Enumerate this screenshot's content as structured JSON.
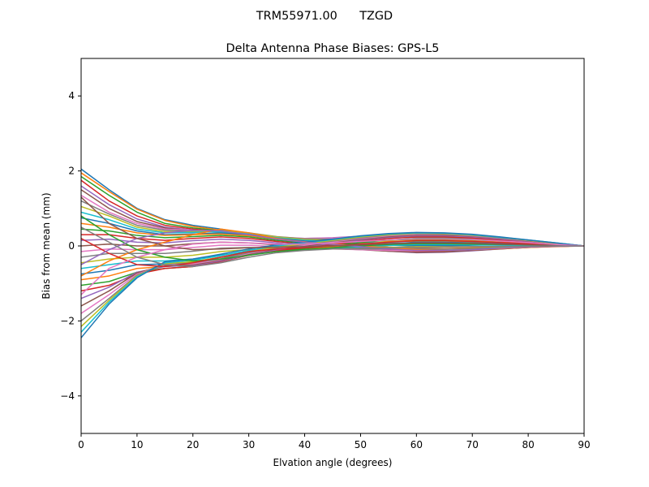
{
  "figure": {
    "suptitle": "TRM55971.00      TZGD"
  },
  "chart_data": {
    "type": "line",
    "title": "Delta Antenna Phase Biases: GPS-L5",
    "xlabel": "Elvation angle (degrees)",
    "ylabel": "Bias from mean (mm)",
    "xlim": [
      0,
      90
    ],
    "ylim": [
      -5,
      5
    ],
    "grid": false,
    "legend": "none",
    "x": [
      0,
      5,
      10,
      15,
      20,
      25,
      30,
      35,
      40,
      45,
      50,
      55,
      60,
      65,
      70,
      75,
      80,
      85,
      90
    ],
    "xticks": [
      0,
      10,
      20,
      30,
      40,
      50,
      60,
      70,
      80,
      90
    ],
    "xtick_labels": [
      "0",
      "10",
      "20",
      "30",
      "40",
      "50",
      "60",
      "70",
      "80",
      "90"
    ],
    "yticks": [
      -4,
      -2,
      0,
      2,
      4
    ],
    "ytick_labels": [
      "−4",
      "−2",
      "0",
      "2",
      "4"
    ],
    "colors": [
      "#1f77b4",
      "#ff7f0e",
      "#2ca02c",
      "#d62728",
      "#9467bd",
      "#8c564b",
      "#e377c2",
      "#7f7f7f",
      "#bcbd22",
      "#17becf"
    ],
    "series": [
      {
        "values": [
          2.05,
          1.5,
          1.0,
          0.7,
          0.55,
          0.45,
          0.32,
          0.2,
          0.12,
          0.08,
          0.05,
          0.03,
          0.02,
          0.02,
          0.03,
          0.04,
          0.04,
          0.02,
          0.0
        ]
      },
      {
        "values": [
          1.95,
          1.45,
          0.98,
          0.68,
          0.52,
          0.42,
          0.3,
          0.19,
          0.12,
          0.1,
          0.08,
          0.07,
          0.06,
          0.06,
          0.06,
          0.06,
          0.05,
          0.03,
          0.0
        ]
      },
      {
        "values": [
          1.85,
          1.35,
          0.9,
          0.6,
          0.48,
          0.4,
          0.3,
          0.2,
          0.15,
          0.15,
          0.15,
          0.16,
          0.17,
          0.17,
          0.15,
          0.13,
          0.1,
          0.05,
          0.0
        ]
      },
      {
        "values": [
          1.75,
          1.2,
          0.8,
          0.55,
          0.45,
          0.38,
          0.29,
          0.2,
          0.17,
          0.19,
          0.22,
          0.25,
          0.27,
          0.26,
          0.22,
          0.17,
          0.12,
          0.06,
          0.0
        ]
      },
      {
        "values": [
          1.6,
          1.1,
          0.72,
          0.5,
          0.42,
          0.38,
          0.3,
          0.22,
          0.2,
          0.22,
          0.26,
          0.3,
          0.32,
          0.3,
          0.26,
          0.2,
          0.14,
          0.07,
          0.0
        ]
      },
      {
        "values": [
          1.5,
          1.0,
          0.65,
          0.48,
          0.4,
          0.36,
          0.3,
          0.22,
          0.19,
          0.2,
          0.24,
          0.28,
          0.3,
          0.28,
          0.24,
          0.19,
          0.13,
          0.06,
          0.0
        ]
      },
      {
        "values": [
          1.35,
          0.9,
          0.6,
          0.45,
          0.42,
          0.4,
          0.33,
          0.24,
          0.2,
          0.21,
          0.25,
          0.29,
          0.31,
          0.29,
          0.25,
          0.2,
          0.14,
          0.07,
          0.0
        ]
      },
      {
        "values": [
          1.2,
          0.85,
          0.55,
          0.42,
          0.4,
          0.42,
          0.35,
          0.25,
          0.19,
          0.18,
          0.2,
          0.22,
          0.23,
          0.22,
          0.19,
          0.15,
          0.11,
          0.05,
          0.0
        ]
      },
      {
        "values": [
          1.05,
          0.8,
          0.5,
          0.38,
          0.38,
          0.4,
          0.34,
          0.24,
          0.17,
          0.15,
          0.14,
          0.13,
          0.12,
          0.11,
          0.1,
          0.09,
          0.07,
          0.04,
          0.0
        ]
      },
      {
        "values": [
          0.9,
          0.7,
          0.45,
          0.35,
          0.36,
          0.38,
          0.32,
          0.22,
          0.15,
          0.12,
          0.1,
          0.08,
          0.07,
          0.06,
          0.06,
          0.06,
          0.05,
          0.03,
          0.0
        ]
      },
      {
        "values": [
          0.75,
          0.6,
          0.4,
          0.3,
          0.32,
          0.34,
          0.3,
          0.2,
          0.13,
          0.09,
          0.05,
          0.02,
          0.0,
          0.0,
          0.02,
          0.03,
          0.03,
          0.02,
          0.0
        ]
      },
      {
        "values": [
          0.6,
          0.5,
          0.35,
          0.28,
          0.3,
          0.32,
          0.27,
          0.18,
          0.11,
          0.06,
          0.02,
          -0.03,
          -0.06,
          -0.07,
          -0.05,
          -0.02,
          0.0,
          0.01,
          0.0
        ]
      },
      {
        "values": [
          0.45,
          0.4,
          0.28,
          0.22,
          0.25,
          0.28,
          0.24,
          0.15,
          0.08,
          0.02,
          -0.03,
          -0.08,
          -0.12,
          -0.12,
          -0.09,
          -0.05,
          -0.02,
          0.0,
          0.0
        ]
      },
      {
        "values": [
          0.3,
          0.3,
          0.2,
          0.15,
          0.2,
          0.24,
          0.2,
          0.12,
          0.05,
          -0.01,
          -0.06,
          -0.11,
          -0.15,
          -0.15,
          -0.11,
          -0.06,
          -0.03,
          -0.01,
          0.0
        ]
      },
      {
        "values": [
          0.15,
          0.18,
          0.1,
          0.08,
          0.14,
          0.18,
          0.15,
          0.08,
          0.02,
          -0.04,
          -0.09,
          -0.14,
          -0.18,
          -0.17,
          -0.13,
          -0.08,
          -0.04,
          -0.01,
          0.0
        ]
      },
      {
        "values": [
          0.0,
          0.05,
          0.0,
          0.0,
          0.06,
          0.1,
          0.08,
          0.03,
          -0.03,
          -0.07,
          -0.1,
          -0.14,
          -0.17,
          -0.16,
          -0.12,
          -0.08,
          -0.04,
          -0.01,
          0.0
        ]
      },
      {
        "values": [
          -0.15,
          -0.08,
          -0.1,
          -0.1,
          -0.04,
          0.02,
          0.02,
          -0.02,
          -0.06,
          -0.08,
          -0.1,
          -0.12,
          -0.13,
          -0.12,
          -0.1,
          -0.07,
          -0.03,
          -0.01,
          0.0
        ]
      },
      {
        "values": [
          -0.3,
          -0.2,
          -0.2,
          -0.2,
          -0.14,
          -0.06,
          -0.04,
          -0.06,
          -0.08,
          -0.08,
          -0.08,
          -0.08,
          -0.08,
          -0.08,
          -0.07,
          -0.05,
          -0.03,
          -0.01,
          0.0
        ]
      },
      {
        "values": [
          -0.45,
          -0.35,
          -0.3,
          -0.3,
          -0.25,
          -0.15,
          -0.1,
          -0.1,
          -0.1,
          -0.08,
          -0.06,
          -0.04,
          -0.02,
          -0.02,
          -0.02,
          -0.02,
          -0.01,
          0.0,
          0.0
        ]
      },
      {
        "values": [
          -0.6,
          -0.5,
          -0.4,
          -0.4,
          -0.35,
          -0.24,
          -0.16,
          -0.13,
          -0.11,
          -0.07,
          -0.03,
          0.01,
          0.04,
          0.04,
          0.03,
          0.02,
          0.01,
          0.0,
          0.0
        ]
      },
      {
        "values": [
          -0.75,
          -0.65,
          -0.5,
          -0.48,
          -0.43,
          -0.3,
          -0.2,
          -0.15,
          -0.11,
          -0.05,
          0.01,
          0.06,
          0.1,
          0.1,
          0.08,
          0.06,
          0.04,
          0.02,
          0.0
        ]
      },
      {
        "values": [
          -0.9,
          -0.8,
          -0.6,
          -0.55,
          -0.5,
          -0.36,
          -0.22,
          -0.15,
          -0.09,
          -0.02,
          0.05,
          0.11,
          0.15,
          0.15,
          0.13,
          0.1,
          0.07,
          0.03,
          0.0
        ]
      },
      {
        "values": [
          -1.05,
          -0.95,
          -0.7,
          -0.6,
          -0.55,
          -0.4,
          -0.24,
          -0.14,
          -0.07,
          0.01,
          0.09,
          0.16,
          0.2,
          0.2,
          0.17,
          0.13,
          0.09,
          0.04,
          0.0
        ]
      },
      {
        "values": [
          -1.2,
          -1.05,
          -0.75,
          -0.6,
          -0.55,
          -0.42,
          -0.25,
          -0.12,
          -0.05,
          0.04,
          0.13,
          0.2,
          0.24,
          0.24,
          0.21,
          0.16,
          0.11,
          0.05,
          0.0
        ]
      },
      {
        "values": [
          -1.4,
          -1.1,
          -0.7,
          -0.55,
          -0.52,
          -0.4,
          -0.24,
          -0.1,
          -0.02,
          0.07,
          0.16,
          0.23,
          0.27,
          0.27,
          0.24,
          0.18,
          0.12,
          0.06,
          0.0
        ]
      },
      {
        "values": [
          -1.6,
          -1.2,
          -0.72,
          -0.52,
          -0.5,
          -0.38,
          -0.22,
          -0.08,
          0.0,
          0.09,
          0.18,
          0.25,
          0.29,
          0.29,
          0.26,
          0.2,
          0.13,
          0.06,
          0.0
        ]
      },
      {
        "values": [
          -1.8,
          -1.3,
          -0.75,
          -0.5,
          -0.48,
          -0.36,
          -0.2,
          -0.06,
          0.02,
          0.11,
          0.2,
          0.27,
          0.31,
          0.31,
          0.27,
          0.21,
          0.14,
          0.07,
          0.0
        ]
      },
      {
        "values": [
          -2.0,
          -1.4,
          -0.78,
          -0.48,
          -0.45,
          -0.34,
          -0.18,
          -0.05,
          0.04,
          0.13,
          0.22,
          0.29,
          0.33,
          0.32,
          0.28,
          0.22,
          0.15,
          0.07,
          0.0
        ]
      },
      {
        "values": [
          -2.15,
          -1.45,
          -0.8,
          -0.47,
          -0.42,
          -0.3,
          -0.15,
          -0.03,
          0.06,
          0.15,
          0.24,
          0.3,
          0.34,
          0.33,
          0.29,
          0.23,
          0.15,
          0.07,
          0.0
        ]
      },
      {
        "values": [
          -2.3,
          -1.5,
          -0.82,
          -0.45,
          -0.38,
          -0.26,
          -0.12,
          0.0,
          0.08,
          0.17,
          0.26,
          0.32,
          0.35,
          0.34,
          0.3,
          0.23,
          0.16,
          0.08,
          0.0
        ]
      },
      {
        "values": [
          -2.45,
          -1.55,
          -0.85,
          -0.42,
          -0.35,
          -0.22,
          -0.08,
          0.03,
          0.1,
          0.18,
          0.27,
          0.33,
          0.36,
          0.35,
          0.31,
          0.24,
          0.16,
          0.08,
          0.0
        ]
      },
      {
        "values": [
          -0.8,
          -0.4,
          -0.1,
          0.1,
          0.3,
          0.45,
          0.35,
          0.2,
          0.1,
          0.05,
          0.0,
          -0.05,
          -0.1,
          -0.12,
          -0.1,
          -0.07,
          -0.04,
          -0.02,
          0.0
        ]
      },
      {
        "values": [
          0.8,
          0.3,
          -0.1,
          -0.3,
          -0.4,
          -0.35,
          -0.25,
          -0.15,
          -0.1,
          -0.05,
          0.0,
          0.04,
          0.06,
          0.06,
          0.05,
          0.04,
          0.03,
          0.01,
          0.0
        ]
      },
      {
        "values": [
          0.2,
          -0.2,
          -0.5,
          -0.55,
          -0.45,
          -0.3,
          -0.15,
          -0.08,
          -0.05,
          0.0,
          0.05,
          0.1,
          0.14,
          0.14,
          0.12,
          0.09,
          0.06,
          0.03,
          0.0
        ]
      },
      {
        "values": [
          -0.5,
          -0.1,
          0.2,
          0.35,
          0.42,
          0.4,
          0.3,
          0.18,
          0.1,
          0.04,
          -0.02,
          -0.08,
          -0.12,
          -0.12,
          -0.1,
          -0.06,
          -0.03,
          -0.01,
          0.0
        ]
      },
      {
        "values": [
          1.3,
          0.6,
          0.2,
          0.0,
          -0.1,
          -0.08,
          -0.05,
          -0.03,
          -0.02,
          0.0,
          0.03,
          0.06,
          0.08,
          0.08,
          0.07,
          0.05,
          0.03,
          0.02,
          0.0
        ]
      },
      {
        "values": [
          -1.3,
          -0.6,
          -0.3,
          -0.1,
          0.05,
          0.1,
          0.08,
          0.05,
          0.05,
          0.08,
          0.12,
          0.16,
          0.19,
          0.19,
          0.17,
          0.13,
          0.09,
          0.04,
          0.0
        ]
      },
      {
        "values": [
          0.5,
          0.1,
          -0.3,
          -0.5,
          -0.55,
          -0.45,
          -0.3,
          -0.18,
          -0.12,
          -0.08,
          -0.06,
          -0.05,
          -0.04,
          -0.03,
          -0.02,
          -0.01,
          -0.01,
          0.0,
          0.0
        ]
      }
    ]
  }
}
